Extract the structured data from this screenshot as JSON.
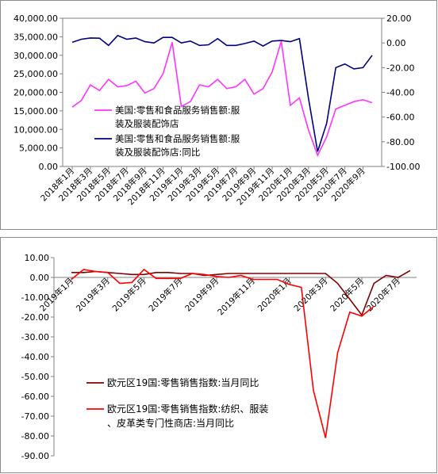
{
  "colors": {
    "pink": "#ff33ff",
    "navy": "#000080",
    "darkred": "#800000",
    "red": "#ff0000",
    "frame": "#808080"
  },
  "chart_data": [
    {
      "type": "line",
      "title": "",
      "ylim": [
        0,
        40000
      ],
      "y2lim": [
        -100,
        20
      ],
      "y_ticks": [
        "40,000.00",
        "35,000.00",
        "30,000.00",
        "25,000.00",
        "20,000.00",
        "15,000.00",
        "10,000.00",
        "5,000.00",
        "0.00"
      ],
      "y2_ticks": [
        "20.00",
        "0.00",
        "-20.00",
        "-40.00",
        "-60.00",
        "-80.00",
        "-100.00"
      ],
      "x_tick_labels": [
        "2018年1月",
        "2018年3月",
        "2018年5月",
        "2018年7月",
        "2018年9月",
        "2018年11月",
        "2019年1月",
        "2019年3月",
        "2019年5月",
        "2019年7月",
        "2019年9月",
        "2019年11月",
        "2020年1月",
        "2020年3月",
        "2020年5月",
        "2020年7月",
        "2020年9月"
      ],
      "legend_position": "lower-left",
      "series": [
        {
          "name": "美国:零售和食品服务销售额:服装及服装配饰店",
          "axis": "left",
          "values": [
            16000,
            17800,
            22000,
            20500,
            23500,
            21500,
            21800,
            23000,
            19800,
            21000,
            25000,
            33500,
            16200,
            17500,
            22000,
            21500,
            23500,
            21000,
            21500,
            23500,
            19500,
            21000,
            25500,
            33800,
            16500,
            18500,
            9800,
            3000,
            8000,
            15500,
            16500,
            17500,
            18000,
            17200
          ]
        },
        {
          "name": "美国:零售和食品服务销售额:服装及服装配饰店:同比",
          "axis": "right",
          "values": [
            0.5,
            3.0,
            4.0,
            3.8,
            -2.0,
            6.0,
            3.0,
            4.0,
            1.0,
            0.0,
            4.5,
            4.5,
            0.0,
            1.5,
            -2.0,
            -1.5,
            3.5,
            -2.0,
            -2.0,
            -0.5,
            1.5,
            -2.5,
            1.5,
            2.0,
            1.0,
            3.5,
            -45.0,
            -88.0,
            -65.0,
            -20.0,
            -17.0,
            -21.0,
            -20.0,
            -10.0
          ]
        }
      ]
    },
    {
      "type": "line",
      "title": "",
      "ylim": [
        -90,
        10
      ],
      "y_ticks": [
        "10.00",
        "0.00",
        "-10.00",
        "-20.00",
        "-30.00",
        "-40.00",
        "-50.00",
        "-60.00",
        "-70.00",
        "-80.00",
        "-90.00"
      ],
      "x_tick_labels": [
        "2019年1月",
        "2019年3月",
        "2019年5月",
        "2019年7月",
        "2019年9月",
        "2019年11月",
        "2020年1月",
        "2020年3月",
        "2020年5月",
        "2020年7月"
      ],
      "legend_position": "lower-left",
      "series": [
        {
          "name": "欧元区19国:零售销售指数:当月同比",
          "values": [
            2.5,
            2.5,
            3.0,
            2.5,
            2.0,
            1.5,
            1.5,
            2.5,
            2.5,
            2.0,
            2.0,
            1.0,
            1.5,
            2.0,
            2.0,
            2.0,
            2.0,
            2.0,
            2.0,
            2.0,
            2.0,
            2.0,
            -3.0,
            -11.0,
            -19.0,
            -3.0,
            1.0,
            0.0,
            3.5
          ]
        },
        {
          "name": "欧元区19国:零售销售指数:纺织、服装、皮革类专门性商店:当月同比",
          "values": [
            -1.0,
            4.0,
            3.0,
            2.5,
            -3.0,
            -2.5,
            4.0,
            -0.5,
            -0.5,
            -0.5,
            2.0,
            1.5,
            0.5,
            0.0,
            1.0,
            -1.0,
            -1.0,
            -1.0,
            -3.5,
            -5.0,
            -57.0,
            -81.0,
            -38.0,
            -17.5,
            -19.5,
            -14.5
          ]
        }
      ]
    }
  ]
}
